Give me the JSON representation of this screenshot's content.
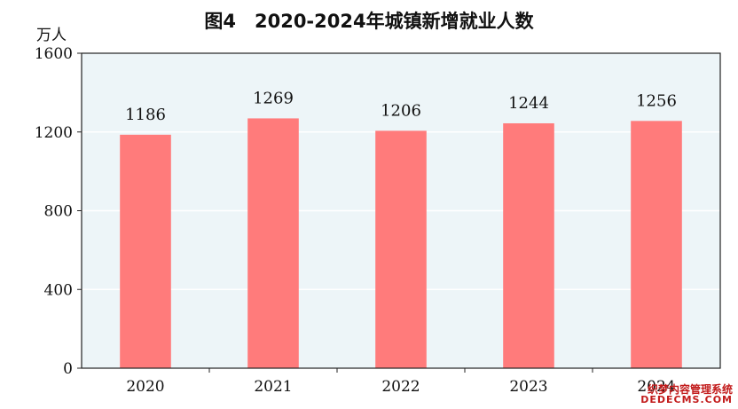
{
  "chart_data": {
    "type": "bar",
    "title": "图4　2020-2024年城镇新增就业人数",
    "ylabel": "万人",
    "xlabel": "",
    "categories": [
      "2020",
      "2021",
      "2022",
      "2023",
      "2024"
    ],
    "values": [
      1186,
      1269,
      1206,
      1244,
      1256
    ],
    "data_labels": [
      "1186",
      "1269",
      "1206",
      "1244",
      "1256"
    ],
    "ylim": [
      0,
      1600
    ],
    "yticks": [
      0,
      400,
      800,
      1200,
      1600
    ],
    "grid": true,
    "colors": {
      "bar": "#ff7b7b",
      "plot_background": "#edf5f8",
      "grid": "#ffffff",
      "axis": "#222222"
    }
  },
  "watermark": {
    "line1": "织梦内容管理系统",
    "line2": "DEDECMS.COM"
  }
}
